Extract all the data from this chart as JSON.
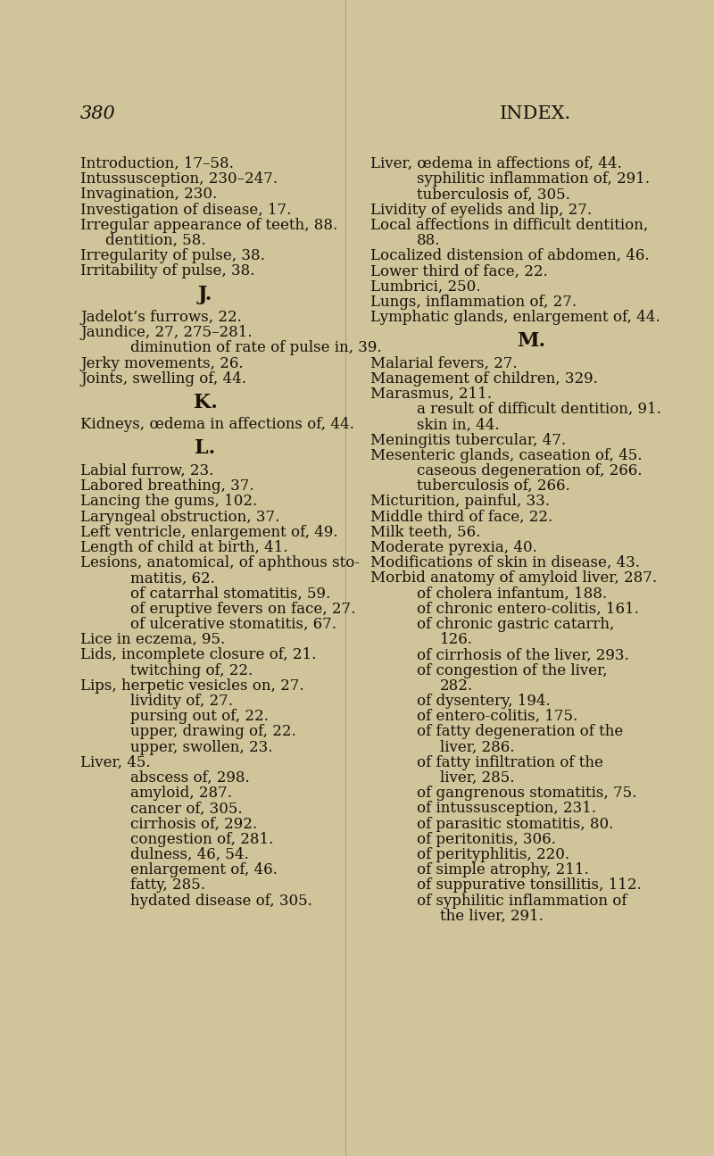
{
  "background_color": "#cfc49a",
  "text_color": "#1a1008",
  "page_number": "380",
  "page_header": "INDEX.",
  "font_size": 12.0,
  "header_font_size": 15,
  "section_font_size": 16,
  "left_column": [
    {
      "text": "Introduction, 17–58.",
      "indent": 0
    },
    {
      "text": "Intussusception, 230–247.",
      "indent": 0
    },
    {
      "text": "Invagination, 230.",
      "indent": 0
    },
    {
      "text": "Investigation of disease, 17.",
      "indent": 0
    },
    {
      "text": "Irregular appearance of teeth, 88.",
      "indent": 0
    },
    {
      "text": "dentition, 58.",
      "indent": 1
    },
    {
      "text": "Irregularity of pulse, 38.",
      "indent": 0
    },
    {
      "text": "Irritability of pulse, 38.",
      "indent": 0
    },
    {
      "text": "J.",
      "indent": 0,
      "section": true
    },
    {
      "text": "Jadelot’s furrows, 22.",
      "indent": 0
    },
    {
      "text": "Jaundice, 27, 275–281.",
      "indent": 0
    },
    {
      "text": "diminution of rate of pulse in, 39.",
      "indent": 2
    },
    {
      "text": "Jerky movements, 26.",
      "indent": 0
    },
    {
      "text": "Joints, swelling of, 44.",
      "indent": 0
    },
    {
      "text": "K.",
      "indent": 0,
      "section": true
    },
    {
      "text": "Kidneys, œdema in affections of, 44.",
      "indent": 0
    },
    {
      "text": "L.",
      "indent": 0,
      "section": true
    },
    {
      "text": "Labial furrow, 23.",
      "indent": 0
    },
    {
      "text": "Labored breathing, 37.",
      "indent": 0
    },
    {
      "text": "Lancing the gums, 102.",
      "indent": 0
    },
    {
      "text": "Laryngeal obstruction, 37.",
      "indent": 0
    },
    {
      "text": "Left ventricle, enlargement of, 49.",
      "indent": 0
    },
    {
      "text": "Length of child at birth, 41.",
      "indent": 0
    },
    {
      "text": "Lesions, anatomical, of aphthous sto-",
      "indent": 0
    },
    {
      "text": "matitis, 62.",
      "indent": 2
    },
    {
      "text": "of catarrhal stomatitis, 59.",
      "indent": 2
    },
    {
      "text": "of eruptive fevers on face, 27.",
      "indent": 2
    },
    {
      "text": "of ulcerative stomatitis, 67.",
      "indent": 2
    },
    {
      "text": "Lice in eczema, 95.",
      "indent": 0
    },
    {
      "text": "Lids, incomplete closure of, 21.",
      "indent": 0
    },
    {
      "text": "twitching of, 22.",
      "indent": 2
    },
    {
      "text": "Lips, herpetic vesicles on, 27.",
      "indent": 0
    },
    {
      "text": "lividity of, 27.",
      "indent": 2
    },
    {
      "text": "pursing out of, 22.",
      "indent": 2
    },
    {
      "text": "upper, drawing of, 22.",
      "indent": 2
    },
    {
      "text": "upper, swollen, 23.",
      "indent": 2
    },
    {
      "text": "Liver, 45.",
      "indent": 0
    },
    {
      "text": "abscess of, 298.",
      "indent": 2
    },
    {
      "text": "amyloid, 287.",
      "indent": 2
    },
    {
      "text": "cancer of, 305.",
      "indent": 2
    },
    {
      "text": "cirrhosis of, 292.",
      "indent": 2
    },
    {
      "text": "congestion of, 281.",
      "indent": 2
    },
    {
      "text": "dulness, 46, 54.",
      "indent": 2
    },
    {
      "text": "enlargement of, 46.",
      "indent": 2
    },
    {
      "text": "fatty, 285.",
      "indent": 2
    },
    {
      "text": "hydated disease of, 305.",
      "indent": 2
    }
  ],
  "right_column": [
    {
      "text": "Liver, œdema in affections of, 44.",
      "indent": 0
    },
    {
      "text": "syphilitic inflammation of, 291.",
      "indent": 2
    },
    {
      "text": "tuberculosis of, 305.",
      "indent": 2
    },
    {
      "text": "Lividity of eyelids and lip, 27.",
      "indent": 0
    },
    {
      "text": "Local affections in difficult dentition,",
      "indent": 0
    },
    {
      "text": "88.",
      "indent": 2
    },
    {
      "text": "Localized distension of abdomen, 46.",
      "indent": 0
    },
    {
      "text": "Lower third of face, 22.",
      "indent": 0
    },
    {
      "text": "Lumbrici, 250.",
      "indent": 0
    },
    {
      "text": "Lungs, inflammation of, 27.",
      "indent": 0
    },
    {
      "text": "Lymphatic glands, enlargement of, 44.",
      "indent": 0
    },
    {
      "text": "M.",
      "indent": 0,
      "section": true
    },
    {
      "text": "Malarial fevers, 27.",
      "indent": 0
    },
    {
      "text": "Management of children, 329.",
      "indent": 0
    },
    {
      "text": "Marasmus, 211.",
      "indent": 0
    },
    {
      "text": "a result of difficult dentition, 91.",
      "indent": 2
    },
    {
      "text": "skin in, 44.",
      "indent": 2
    },
    {
      "text": "Meningitis tubercular, 47.",
      "indent": 0
    },
    {
      "text": "Mesenteric glands, caseation of, 45.",
      "indent": 0
    },
    {
      "text": "caseous degeneration of, 266.",
      "indent": 2
    },
    {
      "text": "tuberculosis of, 266.",
      "indent": 2
    },
    {
      "text": "Micturition, painful, 33.",
      "indent": 0
    },
    {
      "text": "Middle third of face, 22.",
      "indent": 0
    },
    {
      "text": "Milk teeth, 56.",
      "indent": 0
    },
    {
      "text": "Moderate pyrexia, 40.",
      "indent": 0
    },
    {
      "text": "Modifications of skin in disease, 43.",
      "indent": 0
    },
    {
      "text": "Morbid anatomy of amyloid liver, 287.",
      "indent": 0
    },
    {
      "text": "of cholera infantum, 188.",
      "indent": 2
    },
    {
      "text": "of chronic entero-colitis, 161.",
      "indent": 2
    },
    {
      "text": "of chronic gastric catarrh,",
      "indent": 2
    },
    {
      "text": "126.",
      "indent": 3
    },
    {
      "text": "of cirrhosis of the liver, 293.",
      "indent": 2
    },
    {
      "text": "of congestion of the liver,",
      "indent": 2
    },
    {
      "text": "282.",
      "indent": 3
    },
    {
      "text": "of dysentery, 194.",
      "indent": 2
    },
    {
      "text": "of entero-colitis, 175.",
      "indent": 2
    },
    {
      "text": "of fatty degeneration of the",
      "indent": 2
    },
    {
      "text": "liver, 286.",
      "indent": 3
    },
    {
      "text": "of fatty infiltration of the",
      "indent": 2
    },
    {
      "text": "liver, 285.",
      "indent": 3
    },
    {
      "text": "of gangrenous stomatitis, 75.",
      "indent": 2
    },
    {
      "text": "of intussusception, 231.",
      "indent": 2
    },
    {
      "text": "of parasitic stomatitis, 80.",
      "indent": 2
    },
    {
      "text": "of peritonitis, 306.",
      "indent": 2
    },
    {
      "text": "of perityphlitis, 220.",
      "indent": 2
    },
    {
      "text": "of simple atrophy, 211.",
      "indent": 2
    },
    {
      "text": "of suppurative tonsillitis, 112.",
      "indent": 2
    },
    {
      "text": "of syphilitic inflammation of",
      "indent": 2
    },
    {
      "text": "the liver, 291.",
      "indent": 3
    }
  ]
}
